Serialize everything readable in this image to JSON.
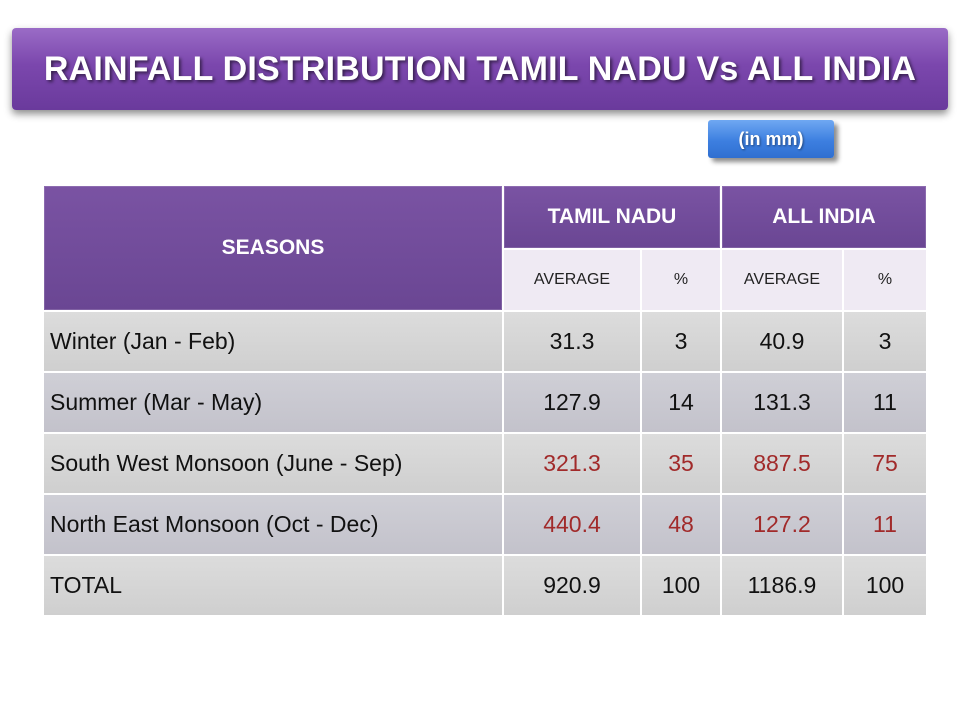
{
  "title": "RAINFALL DISTRIBUTION TAMIL NADU Vs ALL INDIA",
  "unit_badge": "(in mm)",
  "table": {
    "header": {
      "seasons": "SEASONS",
      "tamil_nadu": "TAMIL NADU",
      "all_india": "ALL INDIA",
      "sub": [
        "AVERAGE",
        "%",
        "AVERAGE",
        "%"
      ]
    },
    "rows": [
      {
        "season": "Winter (Jan - Feb)",
        "tn_avg": "31.3",
        "tn_pct": "3",
        "ai_avg": "40.9",
        "ai_pct": "3",
        "highlight": false
      },
      {
        "season": "Summer (Mar - May)",
        "tn_avg": "127.9",
        "tn_pct": "14",
        "ai_avg": "131.3",
        "ai_pct": "11",
        "highlight": false
      },
      {
        "season": "South West Monsoon (June - Sep)",
        "tn_avg": "321.3",
        "tn_pct": "35",
        "ai_avg": "887.5",
        "ai_pct": "75",
        "highlight": true
      },
      {
        "season": "North East Monsoon (Oct - Dec)",
        "tn_avg": "440.4",
        "tn_pct": "48",
        "ai_avg": "127.2",
        "ai_pct": "11",
        "highlight": true
      },
      {
        "season": "TOTAL",
        "tn_avg": "920.9",
        "tn_pct": "100",
        "ai_avg": "1186.9",
        "ai_pct": "100",
        "highlight": false
      }
    ]
  },
  "colors": {
    "header_purple": "#6a4693",
    "title_purple": "#7b47ad",
    "badge_blue": "#3d7fe0",
    "highlight_red": "#a12a2a"
  }
}
